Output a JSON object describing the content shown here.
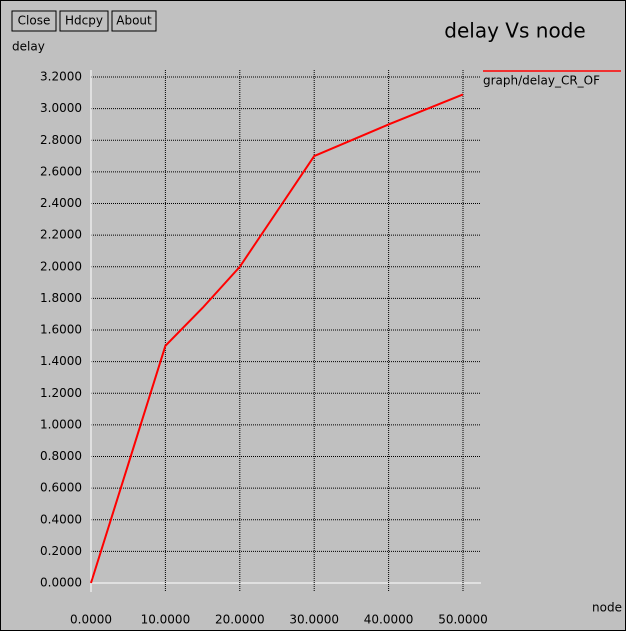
{
  "buttons": [
    "Close",
    "Hdcpy",
    "About"
  ],
  "chart_data": {
    "type": "line",
    "title": "delay Vs node",
    "y_label": "delay",
    "x_label": "node",
    "x": [
      0,
      10,
      15,
      20,
      30,
      40,
      50
    ],
    "series": [
      {
        "name": "graph/delay_CR_OF",
        "color": "#ff0000",
        "values": [
          0,
          1.5,
          1.74,
          2.0,
          2.7,
          2.9,
          3.09
        ]
      }
    ],
    "xlim": [
      0,
      50
    ],
    "xticks": [
      {
        "value": 0,
        "label": "0.0000"
      },
      {
        "value": 10,
        "label": "10.0000"
      },
      {
        "value": 20,
        "label": "20.0000"
      },
      {
        "value": 30,
        "label": "30.0000"
      },
      {
        "value": 40,
        "label": "40.0000"
      },
      {
        "value": 50,
        "label": "50.0000"
      }
    ],
    "ylim": [
      0,
      3.2
    ],
    "yticks": [
      {
        "value": 0,
        "label": "0.0000"
      },
      {
        "value": 0.2,
        "label": "0.2000"
      },
      {
        "value": 0.4,
        "label": "0.4000"
      },
      {
        "value": 0.6,
        "label": "0.6000"
      },
      {
        "value": 0.8,
        "label": "0.8000"
      },
      {
        "value": 1.0,
        "label": "1.0000"
      },
      {
        "value": 1.2,
        "label": "1.2000"
      },
      {
        "value": 1.4,
        "label": "1.4000"
      },
      {
        "value": 1.6,
        "label": "1.6000"
      },
      {
        "value": 1.8,
        "label": "1.8000"
      },
      {
        "value": 2.0,
        "label": "2.0000"
      },
      {
        "value": 2.2,
        "label": "2.2000"
      },
      {
        "value": 2.4,
        "label": "2.4000"
      },
      {
        "value": 2.6,
        "label": "2.6000"
      },
      {
        "value": 2.8,
        "label": "2.8000"
      },
      {
        "value": 3.0,
        "label": "3.0000"
      },
      {
        "value": 3.2,
        "label": "3.2000"
      }
    ],
    "grid": true
  }
}
